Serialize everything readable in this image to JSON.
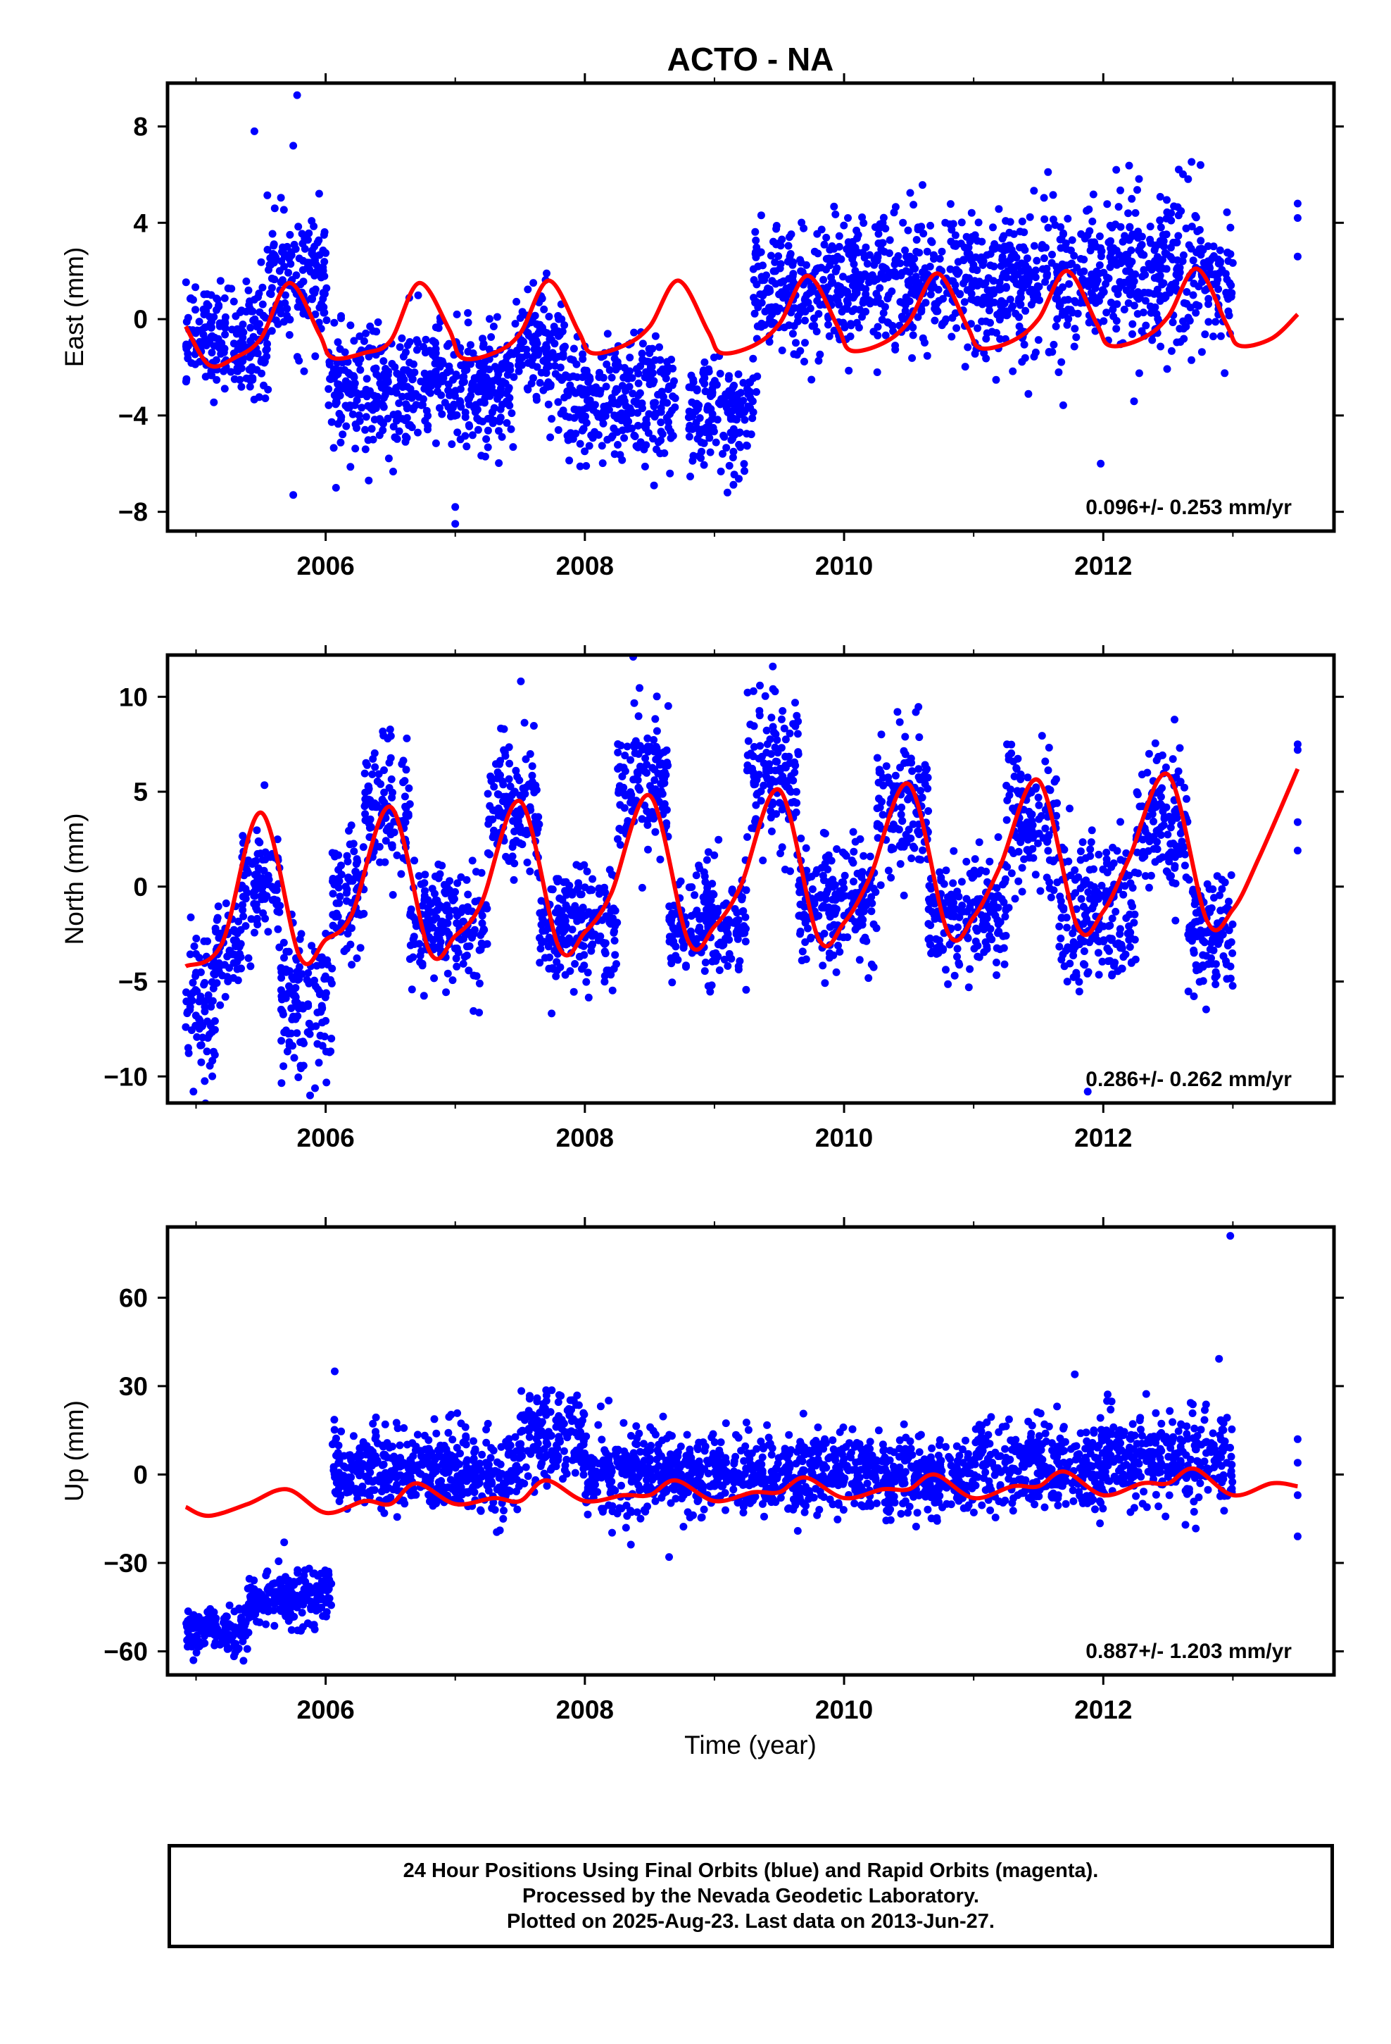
{
  "title": "ACTO - NA",
  "xlabel": "Time (year)",
  "footer": {
    "lines": [
      "24 Hour Positions Using Final Orbits (blue) and Rapid Orbits (magenta).",
      "Processed by the Nevada Geodetic Laboratory.",
      "Plotted on 2025-Aug-23. Last data on 2013-Jun-27."
    ]
  },
  "colors": {
    "points": "#0000ff",
    "fit": "#ff0000",
    "axis": "#000000"
  },
  "chart_data": [
    {
      "type": "scatter",
      "ylabel": "East (mm)",
      "xlim": [
        2004.78,
        2013.78
      ],
      "ylim": [
        -8.8,
        9.8
      ],
      "xticks": [
        2006,
        2008,
        2010,
        2012
      ],
      "yticks": [
        -8,
        -4,
        0,
        4,
        8
      ],
      "rate_text": "0.096+/- 0.253 mm/yr",
      "segments": [
        {
          "x0": 2004.92,
          "x1": 2005.55,
          "mean": -0.8,
          "sigma": 1.1
        },
        {
          "x0": 2005.55,
          "x1": 2006.02,
          "mean": 1.6,
          "sigma": 1.3
        },
        {
          "x0": 2006.02,
          "x1": 2006.55,
          "mean": -3.0,
          "sigma": 1.3
        },
        {
          "x0": 2006.55,
          "x1": 2007.45,
          "mean": -2.8,
          "sigma": 1.2
        },
        {
          "x0": 2007.45,
          "x1": 2007.85,
          "mean": -1.2,
          "sigma": 1.3
        },
        {
          "x0": 2007.85,
          "x1": 2008.7,
          "mean": -3.5,
          "sigma": 1.3
        },
        {
          "x0": 2008.8,
          "x1": 2009.3,
          "mean": -4.0,
          "sigma": 1.1
        },
        {
          "x0": 2009.3,
          "x1": 2010.0,
          "mean": 1.3,
          "sigma": 1.3
        },
        {
          "x0": 2010.0,
          "x1": 2011.0,
          "mean": 1.5,
          "sigma": 1.5
        },
        {
          "x0": 2011.0,
          "x1": 2012.0,
          "mean": 1.4,
          "sigma": 1.5
        },
        {
          "x0": 2012.0,
          "x1": 2013.0,
          "mean": 2.0,
          "sigma": 1.6
        }
      ],
      "outliers": [
        [
          2005.45,
          7.8
        ],
        [
          2005.78,
          9.3
        ],
        [
          2005.75,
          7.2
        ],
        [
          2005.75,
          -7.3
        ],
        [
          2006.08,
          -7.0
        ],
        [
          2007.0,
          -8.5
        ],
        [
          2007.0,
          -7.8
        ],
        [
          2008.9,
          -5.5
        ],
        [
          2009.1,
          -7.2
        ],
        [
          2011.98,
          -6.0
        ],
        [
          2012.1,
          6.2
        ],
        [
          2013.5,
          4.8
        ],
        [
          2013.5,
          4.2
        ],
        [
          2013.5,
          2.6
        ],
        [
          2012.75,
          6.4
        ]
      ],
      "fit": {
        "x": [
          2004.92,
          2005.1,
          2005.3,
          2005.5,
          2005.72,
          2005.95,
          2006.05,
          2006.3,
          2006.5,
          2006.72,
          2006.95,
          2007.05,
          2007.3,
          2007.5,
          2007.72,
          2007.95,
          2008.05,
          2008.3,
          2008.5,
          2008.72,
          2008.95,
          2009.05,
          2009.3,
          2009.5,
          2009.72,
          2009.95,
          2010.05,
          2010.3,
          2010.5,
          2010.72,
          2010.95,
          2011.05,
          2011.3,
          2011.5,
          2011.72,
          2011.95,
          2012.05,
          2012.3,
          2012.5,
          2012.72,
          2012.95,
          2013.05,
          2013.3,
          2013.5
        ],
        "y": [
          -0.3,
          -1.9,
          -1.6,
          -0.8,
          1.5,
          -0.6,
          -1.6,
          -1.4,
          -0.9,
          1.5,
          -0.4,
          -1.6,
          -1.4,
          -0.6,
          1.6,
          -0.5,
          -1.4,
          -1.1,
          -0.3,
          1.6,
          -0.5,
          -1.4,
          -1.1,
          -0.2,
          1.8,
          -0.3,
          -1.3,
          -1.0,
          -0.1,
          1.9,
          -0.3,
          -1.2,
          -0.9,
          0.0,
          2.0,
          -0.2,
          -1.1,
          -0.8,
          0.1,
          2.1,
          -0.2,
          -1.1,
          -0.8,
          0.2
        ]
      }
    },
    {
      "type": "scatter",
      "ylabel": "North (mm)",
      "xlim": [
        2004.78,
        2013.78
      ],
      "ylim": [
        -11.4,
        12.2
      ],
      "xticks": [
        2006,
        2008,
        2010,
        2012
      ],
      "yticks": [
        -10,
        -5,
        0,
        5,
        10
      ],
      "rate_text": "0.286+/- 0.262 mm/yr",
      "segments": [
        {
          "x0": 2004.92,
          "x1": 2005.15,
          "mean": -6.0,
          "sigma": 1.8
        },
        {
          "x0": 2005.15,
          "x1": 2005.35,
          "mean": -3.5,
          "sigma": 1.3
        },
        {
          "x0": 2005.35,
          "x1": 2005.65,
          "mean": 0.0,
          "sigma": 1.5
        },
        {
          "x0": 2005.65,
          "x1": 2006.05,
          "mean": -6.0,
          "sigma": 2.0
        },
        {
          "x0": 2006.05,
          "x1": 2006.3,
          "mean": -0.5,
          "sigma": 1.5
        },
        {
          "x0": 2006.3,
          "x1": 2006.65,
          "mean": 4.0,
          "sigma": 1.8
        },
        {
          "x0": 2006.65,
          "x1": 2007.25,
          "mean": -2.0,
          "sigma": 1.5
        },
        {
          "x0": 2007.25,
          "x1": 2007.65,
          "mean": 4.0,
          "sigma": 1.8
        },
        {
          "x0": 2007.65,
          "x1": 2008.25,
          "mean": -2.0,
          "sigma": 1.5
        },
        {
          "x0": 2008.25,
          "x1": 2008.65,
          "mean": 5.5,
          "sigma": 2.0
        },
        {
          "x0": 2008.65,
          "x1": 2009.25,
          "mean": -2.0,
          "sigma": 1.5
        },
        {
          "x0": 2009.25,
          "x1": 2009.65,
          "mean": 6.0,
          "sigma": 2.2
        },
        {
          "x0": 2009.65,
          "x1": 2010.25,
          "mean": -1.0,
          "sigma": 1.5
        },
        {
          "x0": 2010.25,
          "x1": 2010.65,
          "mean": 4.5,
          "sigma": 1.8
        },
        {
          "x0": 2010.65,
          "x1": 2011.25,
          "mean": -1.5,
          "sigma": 1.5
        },
        {
          "x0": 2011.25,
          "x1": 2011.65,
          "mean": 3.5,
          "sigma": 1.8
        },
        {
          "x0": 2011.65,
          "x1": 2012.25,
          "mean": -1.5,
          "sigma": 2.0
        },
        {
          "x0": 2012.25,
          "x1": 2012.65,
          "mean": 3.5,
          "sigma": 1.8
        },
        {
          "x0": 2012.65,
          "x1": 2013.0,
          "mean": -2.5,
          "sigma": 1.5
        }
      ],
      "outliers": [
        [
          2004.98,
          -10.8
        ],
        [
          2005.88,
          -11.0
        ],
        [
          2009.45,
          11.6
        ],
        [
          2012.55,
          8.8
        ],
        [
          2011.88,
          -10.8
        ],
        [
          2013.5,
          7.5
        ],
        [
          2013.5,
          7.2
        ],
        [
          2013.5,
          3.4
        ],
        [
          2013.5,
          1.9
        ]
      ],
      "fit": {
        "x": [
          2004.92,
          2005.2,
          2005.5,
          2005.8,
          2006.0,
          2006.2,
          2006.5,
          2006.8,
          2007.0,
          2007.2,
          2007.5,
          2007.8,
          2008.0,
          2008.2,
          2008.5,
          2008.8,
          2009.0,
          2009.2,
          2009.5,
          2009.8,
          2010.0,
          2010.2,
          2010.5,
          2010.8,
          2011.0,
          2011.2,
          2011.5,
          2011.8,
          2012.0,
          2012.2,
          2012.5,
          2012.8,
          2013.0,
          2013.2,
          2013.5
        ],
        "y": [
          -4.2,
          -3.0,
          3.9,
          -3.7,
          -2.8,
          -1.5,
          4.2,
          -3.4,
          -2.6,
          -0.9,
          4.5,
          -3.2,
          -2.4,
          -0.4,
          4.8,
          -2.9,
          -2.1,
          0.0,
          5.1,
          -2.7,
          -1.9,
          0.5,
          5.4,
          -2.4,
          -1.6,
          1.0,
          5.6,
          -2.1,
          -1.3,
          1.5,
          5.9,
          -1.8,
          -1.2,
          1.5,
          6.2
        ]
      }
    },
    {
      "type": "scatter",
      "ylabel": "Up (mm)",
      "xlim": [
        2004.78,
        2013.78
      ],
      "ylim": [
        -68,
        84
      ],
      "xticks": [
        2006,
        2008,
        2010,
        2012
      ],
      "yticks": [
        -60,
        -30,
        0,
        30,
        60
      ],
      "rate_text": "0.887+/- 1.203 mm/yr",
      "segments": [
        {
          "x0": 2004.92,
          "x1": 2005.4,
          "mean": -53,
          "sigma": 3.5
        },
        {
          "x0": 2005.4,
          "x1": 2006.05,
          "mean": -42,
          "sigma": 4.5
        },
        {
          "x0": 2006.05,
          "x1": 2007.0,
          "mean": 2,
          "sigma": 7
        },
        {
          "x0": 2007.0,
          "x1": 2007.5,
          "mean": 0,
          "sigma": 7
        },
        {
          "x0": 2007.5,
          "x1": 2008.0,
          "mean": 12,
          "sigma": 8
        },
        {
          "x0": 2008.0,
          "x1": 2009.0,
          "mean": 0,
          "sigma": 7
        },
        {
          "x0": 2009.0,
          "x1": 2011.0,
          "mean": 0,
          "sigma": 6.5
        },
        {
          "x0": 2011.0,
          "x1": 2012.0,
          "mean": 3,
          "sigma": 7
        },
        {
          "x0": 2012.0,
          "x1": 2013.0,
          "mean": 5,
          "sigma": 8
        }
      ],
      "outliers": [
        [
          2006.07,
          35
        ],
        [
          2011.78,
          34
        ],
        [
          2012.98,
          81
        ],
        [
          2008.65,
          -28
        ],
        [
          2004.98,
          -63
        ],
        [
          2013.5,
          12
        ],
        [
          2013.5,
          -7
        ],
        [
          2013.5,
          -21
        ],
        [
          2013.5,
          4
        ],
        [
          2005.68,
          -23
        ]
      ],
      "fit": {
        "x": [
          2004.92,
          2005.1,
          2005.4,
          2005.7,
          2006.0,
          2006.3,
          2006.5,
          2006.7,
          2007.0,
          2007.3,
          2007.5,
          2007.7,
          2008.0,
          2008.3,
          2008.5,
          2008.7,
          2009.0,
          2009.3,
          2009.5,
          2009.7,
          2010.0,
          2010.3,
          2010.5,
          2010.7,
          2011.0,
          2011.3,
          2011.5,
          2011.7,
          2012.0,
          2012.3,
          2012.5,
          2012.7,
          2013.0,
          2013.3,
          2013.5
        ],
        "y": [
          -11,
          -14,
          -10,
          -5,
          -13,
          -9,
          -10,
          -3,
          -10,
          -8,
          -9,
          -2,
          -9,
          -7,
          -7,
          -2,
          -9,
          -6,
          -6,
          -1,
          -8,
          -5,
          -5,
          0,
          -8,
          -4,
          -4,
          1,
          -7,
          -3,
          -3,
          2,
          -7,
          -3,
          -4
        ]
      }
    }
  ]
}
